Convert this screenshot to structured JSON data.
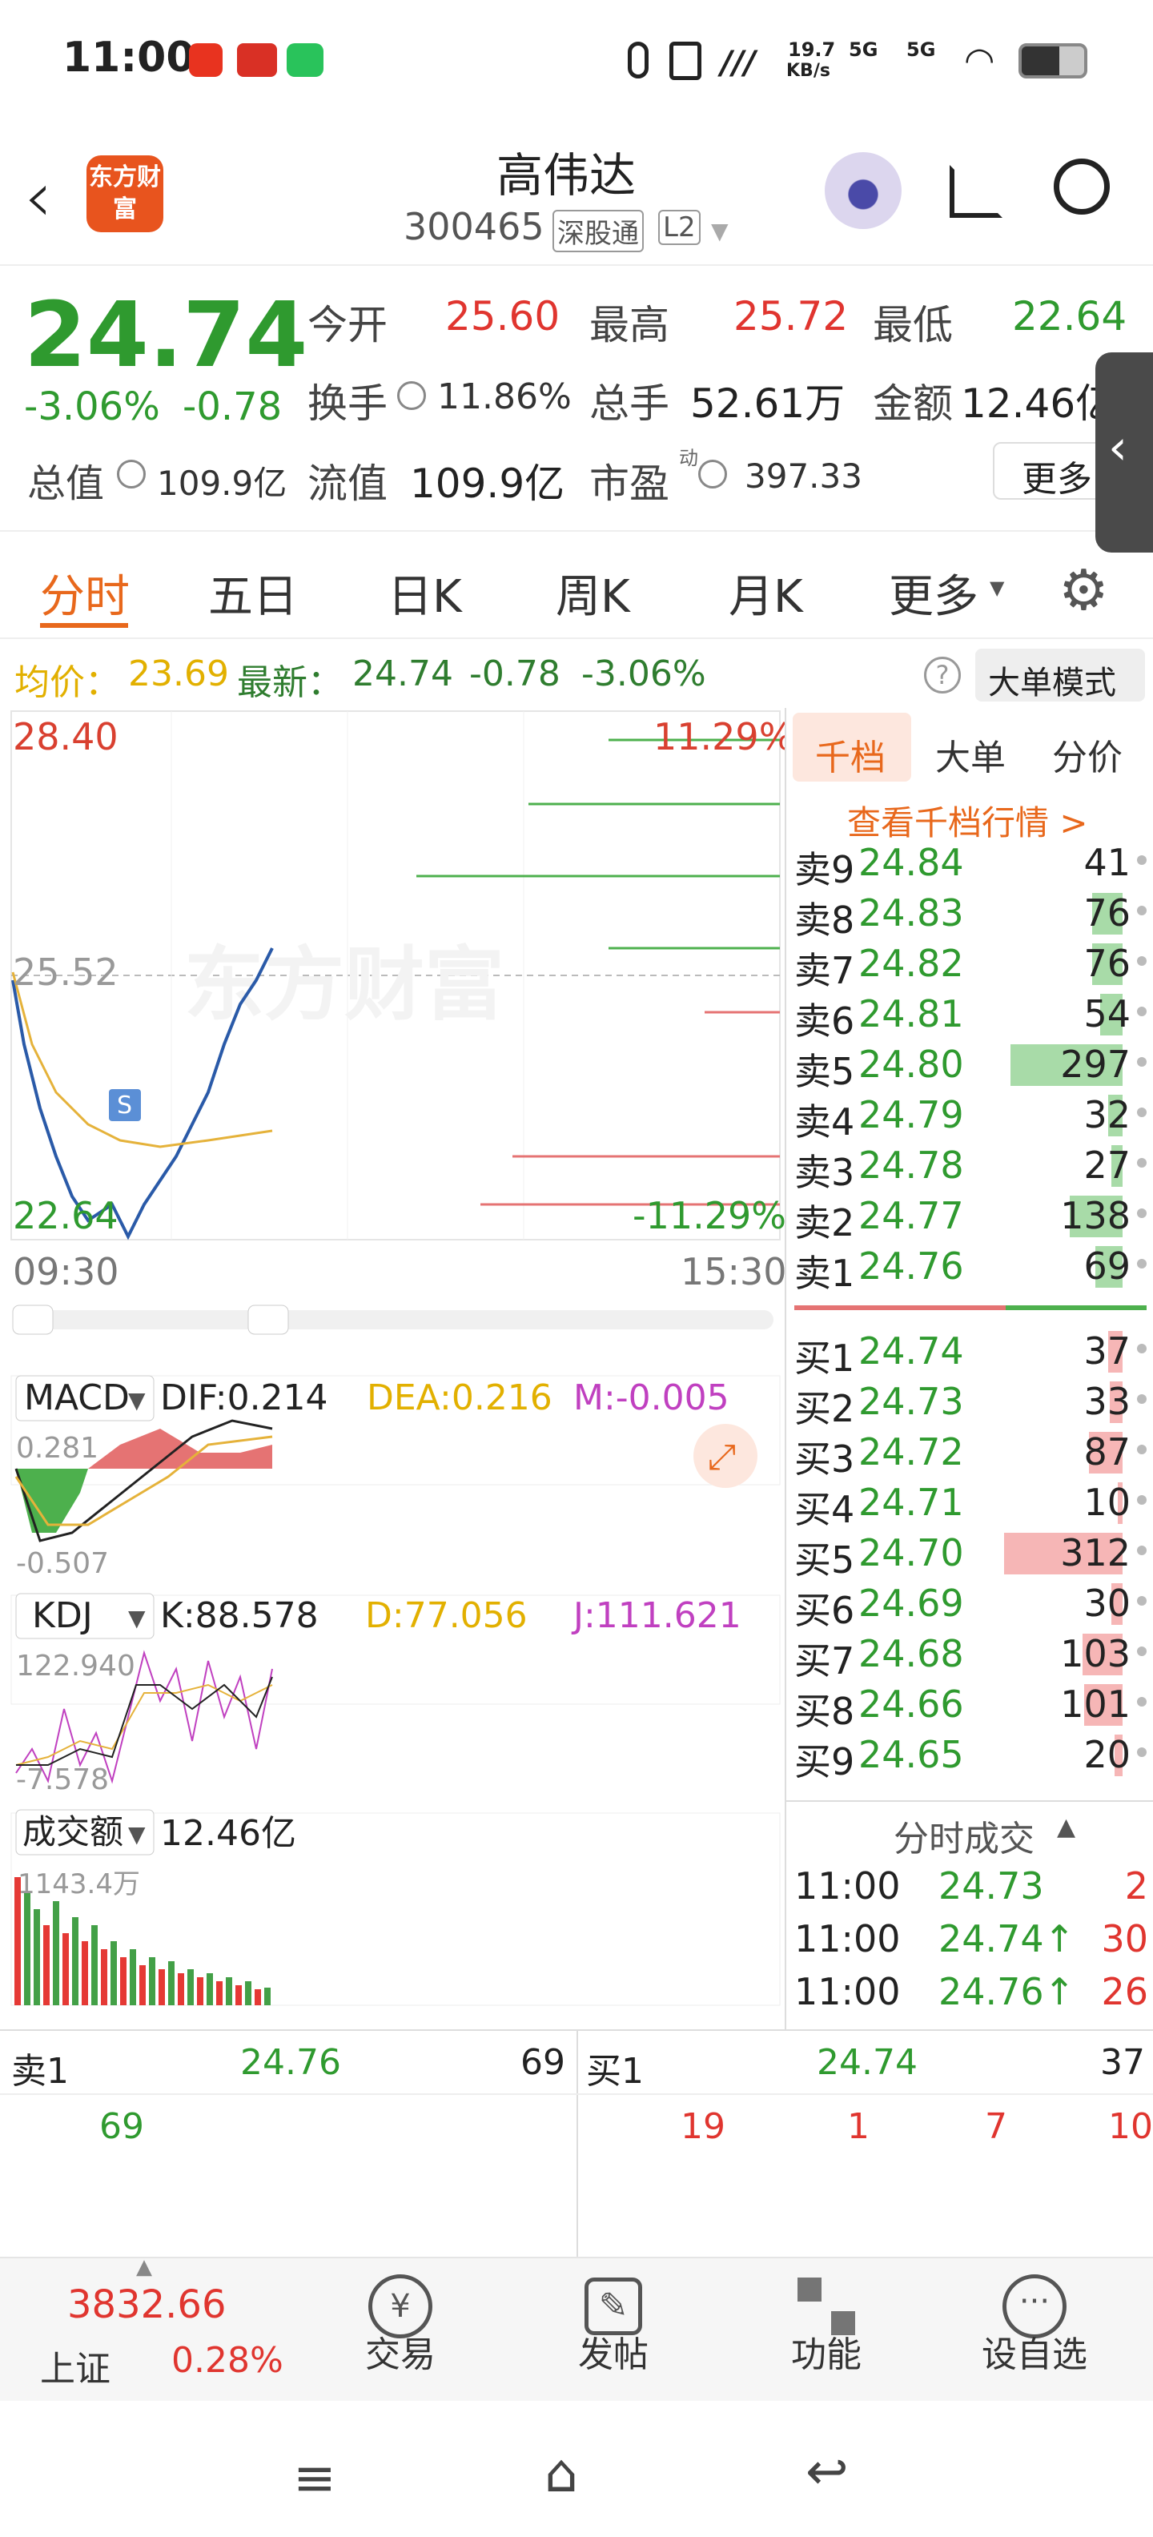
{
  "status": {
    "time": "11:00",
    "net_speed": "19.7",
    "net_unit": "KB/s",
    "sig1": "5G",
    "sig2": "5G"
  },
  "header": {
    "title": "高伟达",
    "code": "300465",
    "badge1": "深股通",
    "badge2": "L2",
    "logo": "东方财富"
  },
  "quote": {
    "price": "24.74",
    "pct": "-3.06%",
    "chg": "-0.78",
    "open_label": "今开",
    "open": "25.60",
    "high_label": "最高",
    "high": "25.72",
    "low_label": "最低",
    "low": "22.64",
    "turnover_label": "换手",
    "turnover": "11.86%",
    "vol_label": "总手",
    "vol": "52.61万",
    "amt_label": "金额",
    "amt": "12.46亿",
    "cap_label": "总值",
    "cap": "109.9亿",
    "float_label": "流值",
    "float": "109.9亿",
    "pe_label": "市盈",
    "pe_sup": "动",
    "pe": "397.33",
    "more": "更多"
  },
  "tabs": [
    "分时",
    "五日",
    "日K",
    "周K",
    "月K",
    "更多"
  ],
  "avgline": {
    "avg_label": "均价：",
    "avg": "23.69",
    "last_label": "最新：",
    "last": "24.74",
    "chg": "-0.78",
    "pct": "-3.06%",
    "mode": "大单模式"
  },
  "chart": {
    "top_price": "28.40",
    "top_pct": "11.29%",
    "mid_price": "25.52",
    "bot_price": "22.64",
    "bot_pct": "-11.29%",
    "t_start": "09:30",
    "t_end": "15:30",
    "watermark": "东方财富",
    "marker": "S"
  },
  "macd": {
    "label": "MACD",
    "dif": "DIF:0.214",
    "dea": "DEA:0.216",
    "m": "M:-0.005",
    "top": "0.281",
    "bot": "-0.507"
  },
  "kdj": {
    "label": "KDJ",
    "k": "K:88.578",
    "d": "D:77.056",
    "j": "J:111.621",
    "top": "122.940",
    "bot": "-7.578"
  },
  "volume": {
    "label": "成交额",
    "value": "12.46亿",
    "axis": "1143.4万"
  },
  "book": {
    "tabs": [
      "千档",
      "大单",
      "分价"
    ],
    "link": "查看千档行情 >",
    "asks": [
      {
        "l": "卖9",
        "p": "24.84",
        "v": "41",
        "bar": 0
      },
      {
        "l": "卖8",
        "p": "24.83",
        "v": "76",
        "bar": 38
      },
      {
        "l": "卖7",
        "p": "24.82",
        "v": "76",
        "bar": 38
      },
      {
        "l": "卖6",
        "p": "24.81",
        "v": "54",
        "bar": 28
      },
      {
        "l": "卖5",
        "p": "24.80",
        "v": "297",
        "bar": 140
      },
      {
        "l": "卖4",
        "p": "24.79",
        "v": "32",
        "bar": 18
      },
      {
        "l": "卖3",
        "p": "24.78",
        "v": "27",
        "bar": 14
      },
      {
        "l": "卖2",
        "p": "24.77",
        "v": "138",
        "bar": 66
      },
      {
        "l": "卖1",
        "p": "24.76",
        "v": "69",
        "bar": 34
      }
    ],
    "bids": [
      {
        "l": "买1",
        "p": "24.74",
        "v": "37",
        "bar": 18
      },
      {
        "l": "买2",
        "p": "24.73",
        "v": "33",
        "bar": 16
      },
      {
        "l": "买3",
        "p": "24.72",
        "v": "87",
        "bar": 42
      },
      {
        "l": "买4",
        "p": "24.71",
        "v": "10",
        "bar": 6
      },
      {
        "l": "买5",
        "p": "24.70",
        "v": "312",
        "bar": 148
      },
      {
        "l": "买6",
        "p": "24.69",
        "v": "30",
        "bar": 14
      },
      {
        "l": "买7",
        "p": "24.68",
        "v": "103",
        "bar": 50
      },
      {
        "l": "买8",
        "p": "24.66",
        "v": "101",
        "bar": 48
      },
      {
        "l": "买9",
        "p": "24.65",
        "v": "20",
        "bar": 10
      }
    ],
    "trades_title": "分时成交",
    "trades": [
      {
        "t": "11:00",
        "p": "24.73",
        "v": "2"
      },
      {
        "t": "11:00",
        "p": "24.74↑",
        "v": "30"
      },
      {
        "t": "11:00",
        "p": "24.76↑",
        "v": "26"
      }
    ]
  },
  "deal": {
    "sell_label": "卖1",
    "sell_price": "24.76",
    "sell_vol": "69",
    "buy_label": "买1",
    "buy_price": "24.74",
    "buy_vol": "37",
    "left_q": [
      "69"
    ],
    "right_q": [
      "19",
      "1",
      "7",
      "10"
    ]
  },
  "bottombar": {
    "index_value": "3832.66",
    "index_name": "上证",
    "index_pct": "0.28%",
    "items": [
      "交易",
      "发帖",
      "功能",
      "设自选"
    ]
  }
}
